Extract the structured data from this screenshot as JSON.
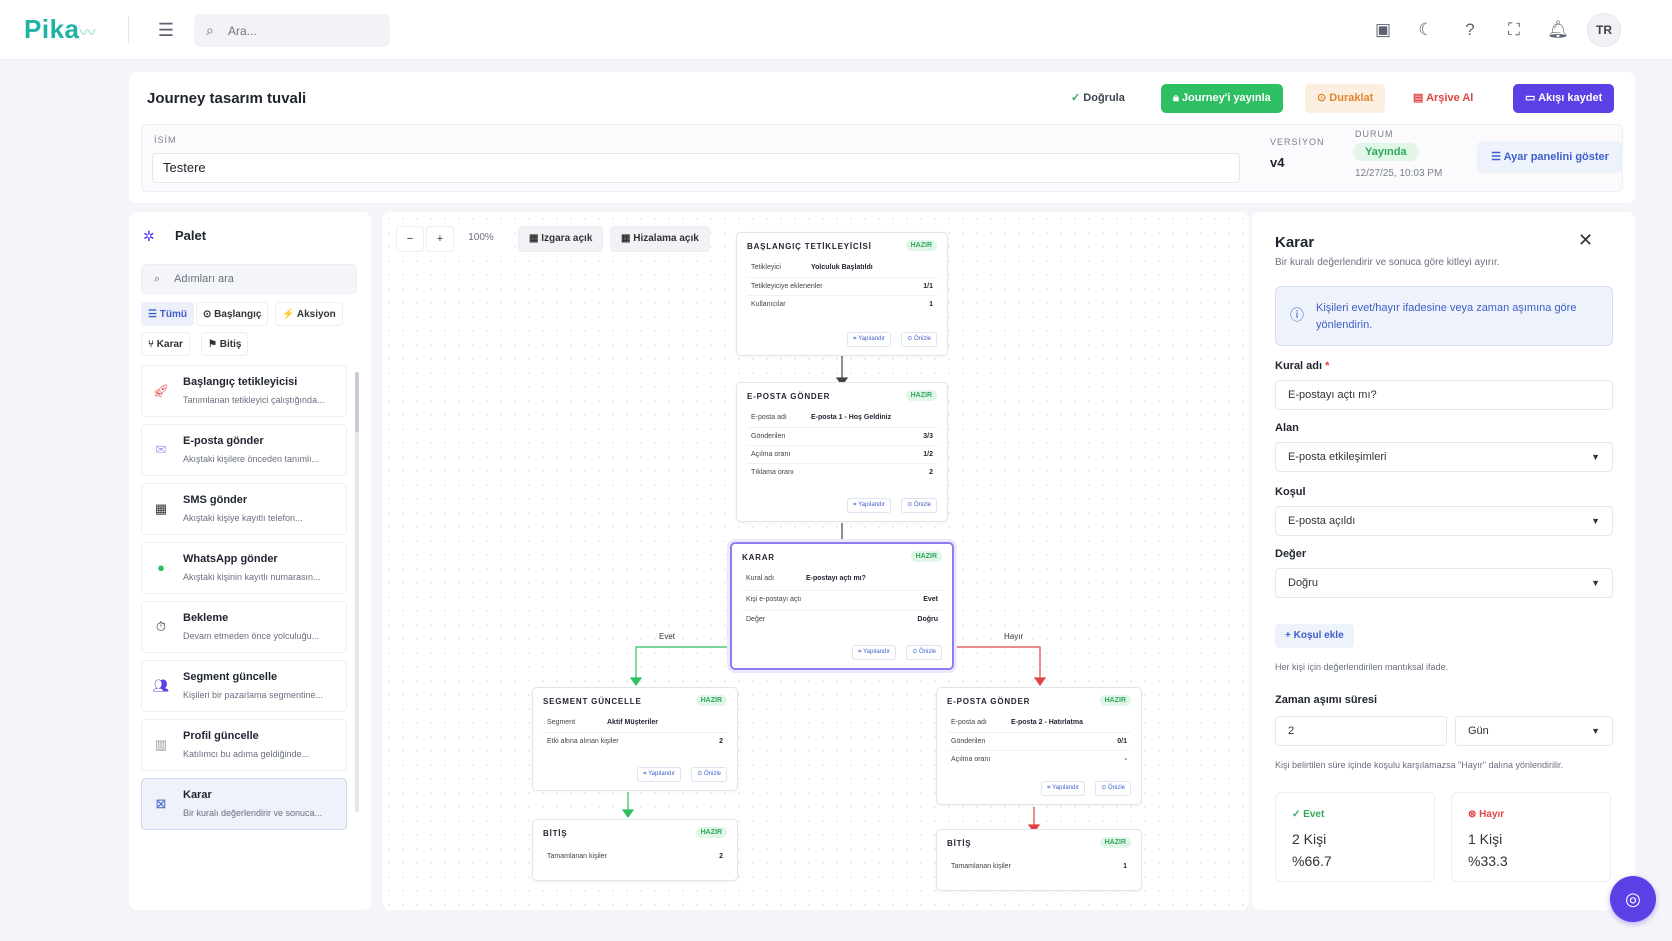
{
  "app": {
    "logo": "Pika",
    "language": "TR"
  },
  "topbar": {
    "search_placeholder": "Ara..."
  },
  "header": {
    "title": "Journey tasarım tuvali",
    "verify": "Doğrula",
    "publish": "Journey'i yayınla",
    "pause": "Duraklat",
    "archive": "Arşive Al",
    "save": "Akışı kaydet",
    "name_label": "İSİM",
    "name_value": "Testere",
    "version_label": "VERSİYON",
    "version_value": "v4",
    "status_label": "DURUM",
    "status_value": "Yayında",
    "status_date": "12/27/25, 10:03 PM",
    "settings_btn": "Ayar panelini göster"
  },
  "palette": {
    "title": "Palet",
    "search_placeholder": "Adımları ara",
    "filters": [
      "Tümü",
      "Başlangıç",
      "Aksiyon",
      "Karar",
      "Bitiş"
    ],
    "items": [
      {
        "title": "Başlangıç tetikleyicisi",
        "desc": "Tanımlanan tetikleyici çalıştığında...",
        "icon": "rocket-icon"
      },
      {
        "title": "E-posta gönder",
        "desc": "Akıştaki kişilere önceden tanımlı...",
        "icon": "mail-icon"
      },
      {
        "title": "SMS gönder",
        "desc": "Akıştaki kişiye kayıtlı telefon...",
        "icon": "sms-icon"
      },
      {
        "title": "WhatsApp gönder",
        "desc": "Akıştaki kişinin kayıtlı numarasın...",
        "icon": "whatsapp-icon"
      },
      {
        "title": "Bekleme",
        "desc": "Devam etmeden önce yolculuğu...",
        "icon": "timer-icon"
      },
      {
        "title": "Segment güncelle",
        "desc": "Kişileri bir pazarlama segmentine...",
        "icon": "users-icon"
      },
      {
        "title": "Profil güncelle",
        "desc": "Katılımcı bu adıma geldiğinde...",
        "icon": "profile-icon"
      },
      {
        "title": "Karar",
        "desc": "Bir kuralı değerlendirir ve sonuca...",
        "icon": "decision-icon"
      }
    ]
  },
  "canvas": {
    "zoom": "100%",
    "grid_toggle": "Izgara açık",
    "align_toggle": "Hizalama açık",
    "ready": "HAZIR",
    "configure": "Yapılandır",
    "preview": "Önizle",
    "edge_yes": "Evet",
    "edge_no": "Hayır",
    "nodes": {
      "start": {
        "title": "BAŞLANGIÇ TETİKLEYİCİSİ",
        "rows": [
          [
            "Tetikleyici",
            "Yolculuk Başlatıldı",
            ""
          ],
          [
            "Tetikleyiciye eklenenler",
            "",
            "1/1"
          ],
          [
            "Kullanıcılar",
            "",
            "1"
          ]
        ]
      },
      "email1": {
        "title": "E-POSTA GÖNDER",
        "rows": [
          [
            "E-posta adı",
            "E-posta 1 - Hoş Geldiniz",
            ""
          ],
          [
            "Gönderilen",
            "",
            "3/3"
          ],
          [
            "Açılma oranı",
            "",
            "1/2"
          ],
          [
            "Tıklama oranı",
            "",
            "2"
          ]
        ]
      },
      "decision": {
        "title": "KARAR",
        "rows": [
          [
            "Kural adı",
            "E-postayı açtı mı?",
            ""
          ],
          [
            "Kişi e-postayı açtı",
            "",
            "Evet"
          ],
          [
            "Değer",
            "",
            "Doğru"
          ]
        ]
      },
      "segment": {
        "title": "SEGMENT GÜNCELLE",
        "rows": [
          [
            "Segment",
            "Aktif Müşteriler",
            ""
          ],
          [
            "Etki altına alınan kişiler",
            "",
            "2"
          ]
        ]
      },
      "email2": {
        "title": "E-POSTA GÖNDER",
        "rows": [
          [
            "E-posta adı",
            "E-posta 2 - Hatırlatma",
            ""
          ],
          [
            "Gönderilen",
            "",
            "0/1"
          ],
          [
            "Açılma oranı",
            "",
            "-"
          ]
        ]
      },
      "end1": {
        "title": "BİTİŞ",
        "rows": [
          [
            "Tamamlanan kişiler",
            "",
            "2"
          ]
        ]
      },
      "end2": {
        "title": "BİTİŞ",
        "rows": [
          [
            "Tamamlanan kişiler",
            "",
            "1"
          ]
        ]
      }
    }
  },
  "inspector": {
    "title": "Karar",
    "subtitle": "Bir kuralı değerlendirir ve sonuca göre kitleyi ayırır.",
    "info": "Kişileri evet/hayır ifadesine veya zaman aşımına göre yönlendirin.",
    "rule_label": "Kural adı",
    "rule_value": "E-postayı açtı mı?",
    "field_label": "Alan",
    "field_value": "E-posta etkileşimleri",
    "cond_label": "Koşul",
    "cond_value": "E-posta açıldı",
    "value_label": "Değer",
    "value_value": "Doğru",
    "add_cond": "Koşul ekle",
    "cond_hint": "Her kişi için değerlendirilen mantıksal ifade.",
    "timeout_label": "Zaman aşımı süresi",
    "timeout_value": "2",
    "timeout_unit": "Gün",
    "timeout_hint": "Kişi belirtilen süre içinde koşulu karşılamazsa \"Hayır\" dalına yönlendirilir.",
    "yes_label": "Evet",
    "yes_count": "2 Kişi",
    "yes_pct": "%66.7",
    "no_label": "Hayır",
    "no_count": "1 Kişi",
    "no_pct": "%33.3"
  },
  "colors": {
    "accent": "#5b40e6",
    "success": "#2fbf63",
    "danger": "#e04444",
    "warning": "#e2872f",
    "brand": "#1fb3a6"
  }
}
